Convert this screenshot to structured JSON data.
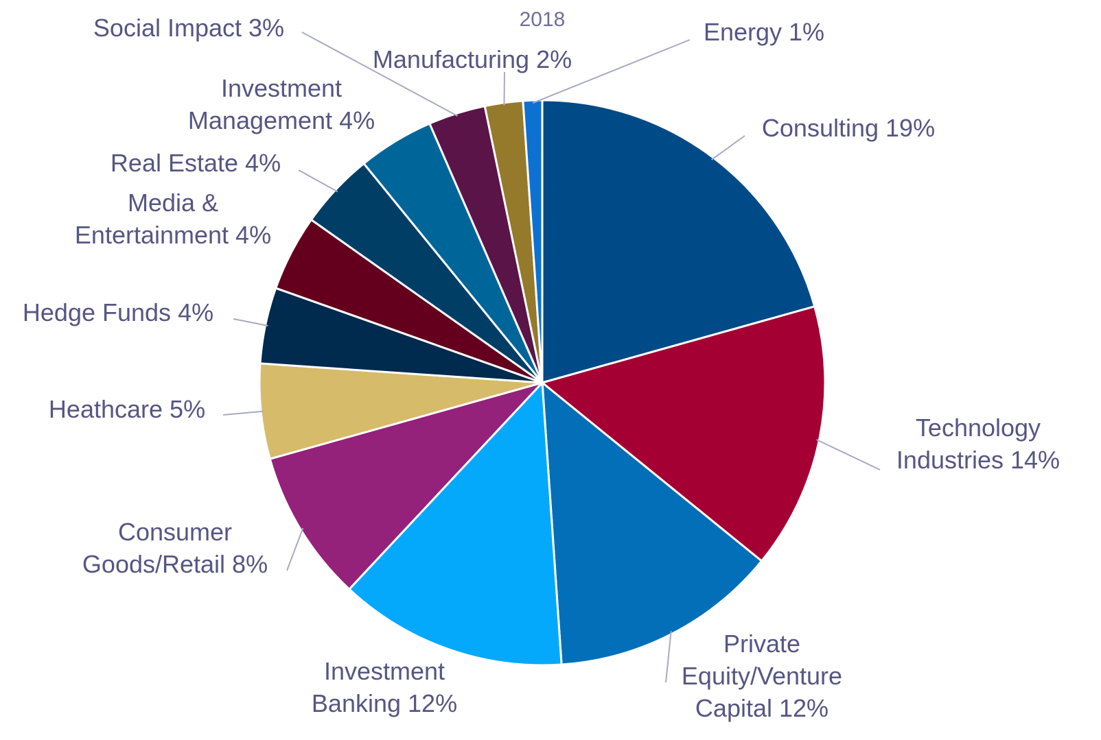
{
  "chart_data": {
    "type": "pie",
    "title": "2018",
    "categories": [
      "Consulting",
      "Technology Industries",
      "Private Equity/Venture Capital",
      "Investment Banking",
      "Consumer Goods/Retail",
      "Heathcare",
      "Hedge Funds",
      "Media & Entertainment",
      "Real Estate",
      "Investment Management",
      "Social Impact",
      "Manufacturing",
      "Energy"
    ],
    "values": [
      19,
      14,
      12,
      12,
      8,
      5,
      4,
      4,
      4,
      4,
      3,
      2,
      1
    ],
    "value_labels": [
      "19%",
      "14%",
      "12%",
      "12%",
      "8%",
      "5%",
      "4%",
      "4%",
      "4%",
      "4%",
      "3%",
      "2%",
      "1%"
    ],
    "colors": [
      "#004a87",
      "#a50034",
      "#046fb9",
      "#05a9fb",
      "#94217a",
      "#d6bb6b",
      "#002a4e",
      "#64001e",
      "#003e66",
      "#006699",
      "#5a1448",
      "#957a2b",
      "#0d71d1"
    ]
  }
}
